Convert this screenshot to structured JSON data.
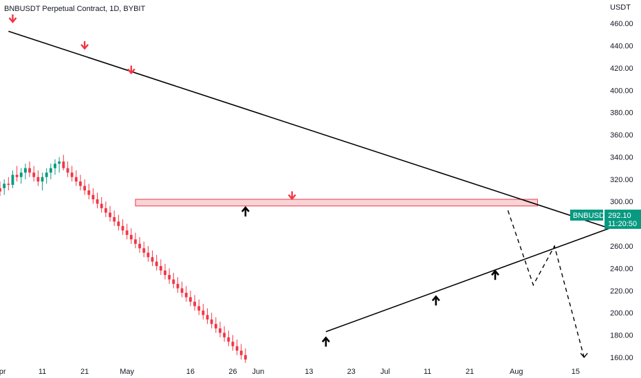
{
  "header": {
    "title": "BNBUSDT Perpetual Contract, 1D, BYBIT"
  },
  "price_axis": {
    "currency_label": "USDT"
  },
  "price_tag": {
    "symbol": "BNBUSDT",
    "price": "292.10",
    "countdown": "11:20:50"
  },
  "colors": {
    "up": "#089981",
    "down": "#f23645",
    "trendline": "#000000",
    "zone_fill": "#f7c1c4",
    "zone_border": "#f23645",
    "tag_bg": "#089981"
  },
  "chart_data": {
    "type": "candlestick",
    "title": "BNBUSDT Perpetual Contract, 1D, BYBIT",
    "ylabel": "USDT",
    "ylim": [
      155,
      470
    ],
    "xlim": [
      "2023-04-01",
      "2023-08-22"
    ],
    "grid": false,
    "y_ticks": [
      "160.00",
      "180.00",
      "200.00",
      "220.00",
      "240.00",
      "260.00",
      "280.00",
      "300.00",
      "320.00",
      "340.00",
      "360.00",
      "380.00",
      "400.00",
      "420.00",
      "440.00",
      "460.00"
    ],
    "x_ticks": [
      {
        "date": "2023-04-01",
        "label": "Apr"
      },
      {
        "date": "2023-04-11",
        "label": "11"
      },
      {
        "date": "2023-04-21",
        "label": "21"
      },
      {
        "date": "2023-05-01",
        "label": "May"
      },
      {
        "date": "2023-05-16",
        "label": "16"
      },
      {
        "date": "2023-05-26",
        "label": "26"
      },
      {
        "date": "2023-06-01",
        "label": "Jun"
      },
      {
        "date": "2023-06-13",
        "label": "13"
      },
      {
        "date": "2023-06-23",
        "label": "23"
      },
      {
        "date": "2023-07-01",
        "label": "Jul"
      },
      {
        "date": "2023-07-11",
        "label": "11"
      },
      {
        "date": "2023-07-21",
        "label": "21"
      },
      {
        "date": "2023-08-01",
        "label": "Aug"
      },
      {
        "date": "2023-08-15",
        "label": "15"
      }
    ],
    "start_date": "2023-03-31",
    "candles": [
      [
        312,
        318,
        305,
        312
      ],
      [
        312,
        318,
        305,
        309
      ],
      [
        312,
        320,
        306,
        316
      ],
      [
        316,
        322,
        310,
        315
      ],
      [
        315,
        328,
        312,
        324
      ],
      [
        324,
        332,
        318,
        322
      ],
      [
        322,
        330,
        316,
        326
      ],
      [
        326,
        334,
        320,
        330
      ],
      [
        330,
        336,
        322,
        326
      ],
      [
        326,
        332,
        318,
        322
      ],
      [
        322,
        328,
        314,
        318
      ],
      [
        318,
        326,
        310,
        322
      ],
      [
        322,
        330,
        316,
        326
      ],
      [
        326,
        334,
        320,
        330
      ],
      [
        330,
        338,
        324,
        334
      ],
      [
        334,
        340,
        326,
        336
      ],
      [
        336,
        342,
        328,
        330
      ],
      [
        330,
        336,
        322,
        326
      ],
      [
        326,
        332,
        318,
        322
      ],
      [
        322,
        328,
        314,
        318
      ],
      [
        318,
        324,
        310,
        314
      ],
      [
        314,
        320,
        306,
        310
      ],
      [
        310,
        316,
        302,
        306
      ],
      [
        306,
        312,
        298,
        302
      ],
      [
        302,
        308,
        294,
        298
      ],
      [
        298,
        304,
        290,
        294
      ],
      [
        294,
        300,
        286,
        290
      ],
      [
        290,
        296,
        282,
        286
      ],
      [
        286,
        292,
        278,
        282
      ],
      [
        282,
        288,
        274,
        278
      ],
      [
        278,
        284,
        270,
        274
      ],
      [
        274,
        280,
        266,
        270
      ],
      [
        270,
        276,
        262,
        266
      ],
      [
        266,
        272,
        258,
        262
      ],
      [
        262,
        268,
        254,
        258
      ],
      [
        258,
        264,
        250,
        254
      ],
      [
        254,
        260,
        246,
        250
      ],
      [
        250,
        256,
        242,
        246
      ],
      [
        246,
        252,
        238,
        242
      ],
      [
        242,
        248,
        234,
        238
      ],
      [
        238,
        244,
        230,
        234
      ],
      [
        234,
        240,
        226,
        230
      ],
      [
        230,
        236,
        222,
        226
      ],
      [
        226,
        232,
        218,
        222
      ],
      [
        222,
        228,
        214,
        218
      ],
      [
        218,
        224,
        210,
        214
      ],
      [
        214,
        220,
        206,
        210
      ],
      [
        210,
        216,
        202,
        206
      ],
      [
        206,
        212,
        198,
        202
      ],
      [
        202,
        208,
        194,
        198
      ],
      [
        198,
        204,
        190,
        194
      ],
      [
        194,
        200,
        186,
        190
      ],
      [
        190,
        196,
        182,
        186
      ],
      [
        186,
        192,
        178,
        182
      ],
      [
        182,
        188,
        174,
        178
      ],
      [
        178,
        184,
        170,
        174
      ],
      [
        174,
        180,
        166,
        170
      ],
      [
        170,
        176,
        162,
        166
      ],
      [
        166,
        172,
        158,
        162
      ],
      [
        162,
        168,
        155,
        158
      ]
    ],
    "trendlines": [
      {
        "name": "",
        "points": [
          [
            "2023-04-03",
            453
          ],
          [
            "2023-08-23",
            276
          ]
        ]
      },
      {
        "name": "",
        "points": [
          [
            "2023-06-17",
            183
          ],
          [
            "2023-08-23",
            276
          ]
        ]
      }
    ],
    "zone": {
      "y0": 296,
      "y1": 302,
      "x0": "2023-05-03",
      "x1": "2023-08-06"
    },
    "projection": {
      "path": [
        [
          "2023-07-30",
          292
        ],
        [
          "2023-08-05",
          225
        ],
        [
          "2023-08-10",
          260
        ],
        [
          "2023-08-17",
          160
        ]
      ]
    },
    "markers": [
      {
        "type": "down",
        "date": "2023-04-04",
        "price": 462
      },
      {
        "type": "down",
        "date": "2023-04-21",
        "price": 438
      },
      {
        "type": "down",
        "date": "2023-05-02",
        "price": 416
      },
      {
        "type": "down",
        "date": "2023-06-09",
        "price": 303
      },
      {
        "type": "up",
        "date": "2023-05-29",
        "price": 294
      },
      {
        "type": "up",
        "date": "2023-06-17",
        "price": 177
      },
      {
        "type": "up",
        "date": "2023-07-13",
        "price": 214
      },
      {
        "type": "up",
        "date": "2023-07-27",
        "price": 237
      }
    ]
  }
}
